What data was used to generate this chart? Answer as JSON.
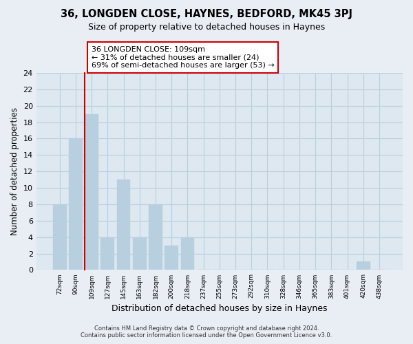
{
  "title1": "36, LONGDEN CLOSE, HAYNES, BEDFORD, MK45 3PJ",
  "title2": "Size of property relative to detached houses in Haynes",
  "xlabel": "Distribution of detached houses by size in Haynes",
  "ylabel": "Number of detached properties",
  "categories": [
    "72sqm",
    "90sqm",
    "109sqm",
    "127sqm",
    "145sqm",
    "163sqm",
    "182sqm",
    "200sqm",
    "218sqm",
    "237sqm",
    "255sqm",
    "273sqm",
    "292sqm",
    "310sqm",
    "328sqm",
    "346sqm",
    "365sqm",
    "383sqm",
    "401sqm",
    "420sqm",
    "438sqm"
  ],
  "values": [
    8,
    16,
    19,
    4,
    11,
    4,
    8,
    3,
    4,
    0,
    0,
    0,
    0,
    0,
    0,
    0,
    0,
    0,
    0,
    1,
    0
  ],
  "highlight_index": 2,
  "bar_color": "#b8cfe0",
  "highlight_line_color": "#cc0000",
  "ylim": [
    0,
    24
  ],
  "yticks": [
    0,
    2,
    4,
    6,
    8,
    10,
    12,
    14,
    16,
    18,
    20,
    22,
    24
  ],
  "annotation_title": "36 LONGDEN CLOSE: 109sqm",
  "annotation_line1": "← 31% of detached houses are smaller (24)",
  "annotation_line2": "69% of semi-detached houses are larger (53) →",
  "footer1": "Contains HM Land Registry data © Crown copyright and database right 2024.",
  "footer2": "Contains public sector information licensed under the Open Government Licence v3.0.",
  "bg_color": "#e8eef4",
  "plot_bg_color": "#dde8f0",
  "grid_color": "#b8cfe0"
}
